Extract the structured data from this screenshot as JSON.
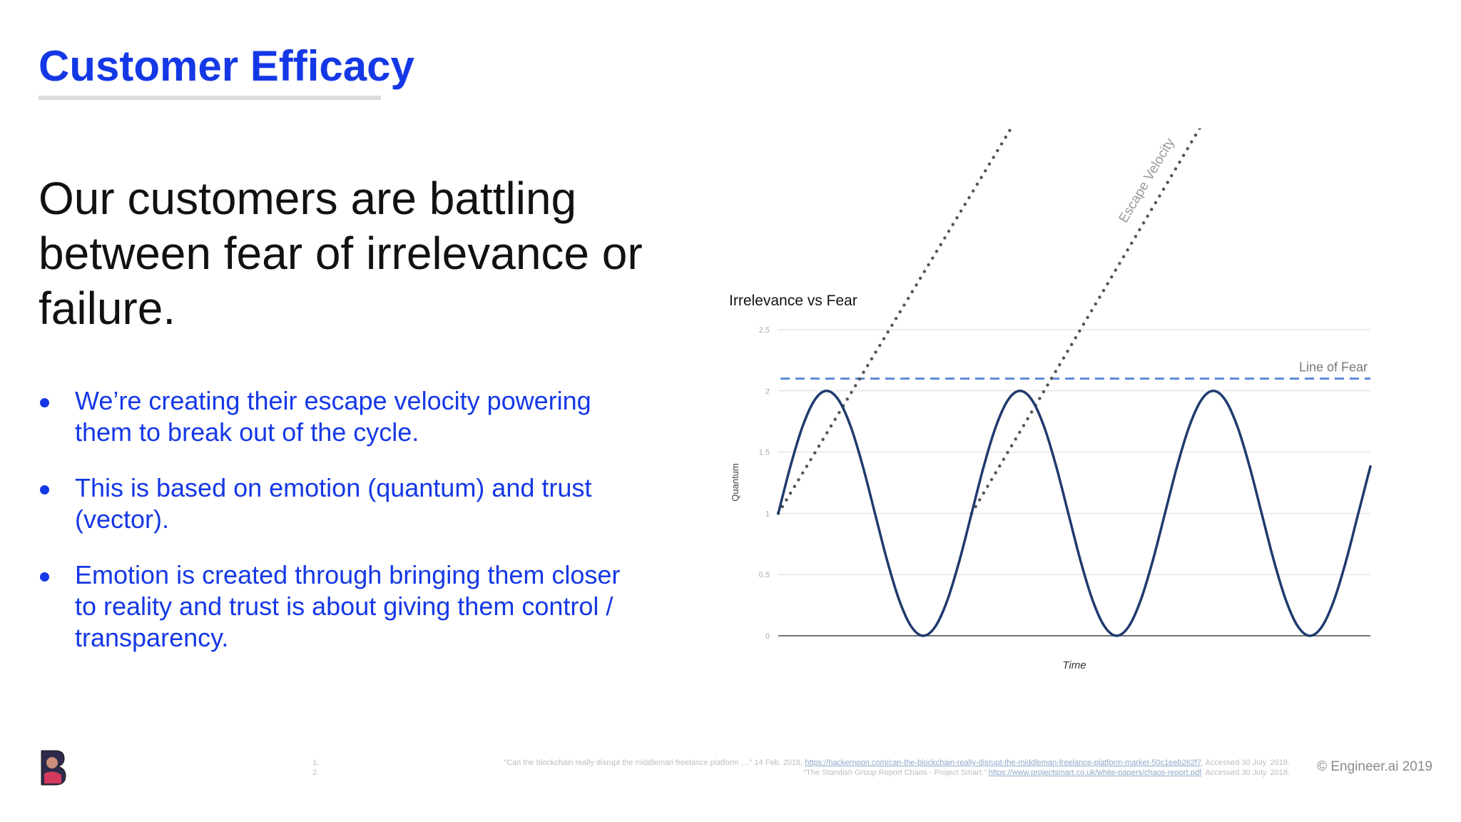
{
  "slide": {
    "title": "Customer Efficacy",
    "headline": "Our customers are battling between fear of irrelevance or failure.",
    "bullets": [
      "We’re creating their escape velocity powering them to break out of the cycle.",
      "This is based on emotion (quantum) and trust (vector).",
      "Emotion is created through bringing them closer to reality and trust is about giving them control / transparency."
    ],
    "colors": {
      "accent": "#1538e6",
      "headline": "#111111",
      "curve": "#1f3a6e",
      "fear_line": "#5b8bd6",
      "escape_line": "#555555",
      "grid": "#d9d9d9",
      "axis": "#444444"
    }
  },
  "chart_data": {
    "type": "line",
    "title": "Irrelevance vs Fear",
    "xlabel": "Time",
    "ylabel": "Quantum",
    "ylim": [
      0,
      2.5
    ],
    "yticks": [
      0,
      0.5,
      1,
      1.5,
      2,
      2.5
    ],
    "ytick_labels": [
      "0",
      "0.5",
      "1",
      "1.5",
      "2",
      "2.5"
    ],
    "grid": true,
    "legend": "none",
    "series": [
      {
        "x": [
          0,
          0.25,
          0.5,
          0.75,
          1,
          1.25,
          1.5,
          1.75,
          2,
          2.25,
          2.5,
          2.75,
          3,
          3.25,
          3.5,
          3.75,
          4,
          4.25,
          4.5,
          4.75,
          5,
          5.25,
          5.5,
          5.75,
          6,
          6.25,
          6.5,
          6.75,
          7,
          7.25,
          7.5,
          7.75,
          8,
          8.25,
          8.5,
          8.75,
          9,
          9.25,
          9.5,
          9.75,
          10,
          10.25,
          10.5,
          10.75,
          11,
          11.25,
          11.5,
          11.75,
          12,
          12.25
        ],
        "values": [
          1,
          1.383,
          1.707,
          1.924,
          2,
          1.924,
          1.707,
          1.383,
          1,
          0.617,
          0.293,
          0.076,
          0,
          0.076,
          0.293,
          0.617,
          1,
          1.383,
          1.707,
          1.924,
          2,
          1.924,
          1.707,
          1.383,
          1,
          0.617,
          0.293,
          0.076,
          0,
          0.076,
          0.293,
          0.617,
          1,
          1.383,
          1.707,
          1.924,
          2,
          1.924,
          1.707,
          1.383,
          1,
          0.617,
          0.293,
          0.076,
          0,
          0.076,
          0.293,
          0.617,
          1,
          1.383
        ]
      }
    ],
    "annotations": [
      {
        "label": "Line of Fear",
        "kind": "horizontal-dashed",
        "y": 2.1
      },
      {
        "label": "",
        "kind": "diagonal-dotted",
        "x1": 0,
        "y1": 1,
        "x2": 4.9,
        "y2": 4.2
      },
      {
        "label": "Escape Velocity",
        "kind": "diagonal-dotted",
        "x1": 4,
        "y1": 1,
        "x2": 8.8,
        "y2": 4.2
      }
    ]
  },
  "footer": {
    "footnotes": [
      {
        "num": "1.",
        "text": "“Can the blockchain really disrupt the middleman freelance platform ....” 14 Feb. 2018,",
        "url": "https://hackernoon.com/can-the-blockchain-really-disrupt-the-middleman-freelance-platform-market-50c1eeb262f7",
        "tail": ". Accessed 30 July. 2018."
      },
      {
        "num": "2.",
        "text": "“The Standish Group Report Chaos - Project Smart.”",
        "url": "https://www.projectsmart.co.uk/white-papers/chaos-report.pdf",
        "tail": ". Accessed 30 July. 2018."
      }
    ],
    "copyright": "© Engineer.ai 2019"
  }
}
